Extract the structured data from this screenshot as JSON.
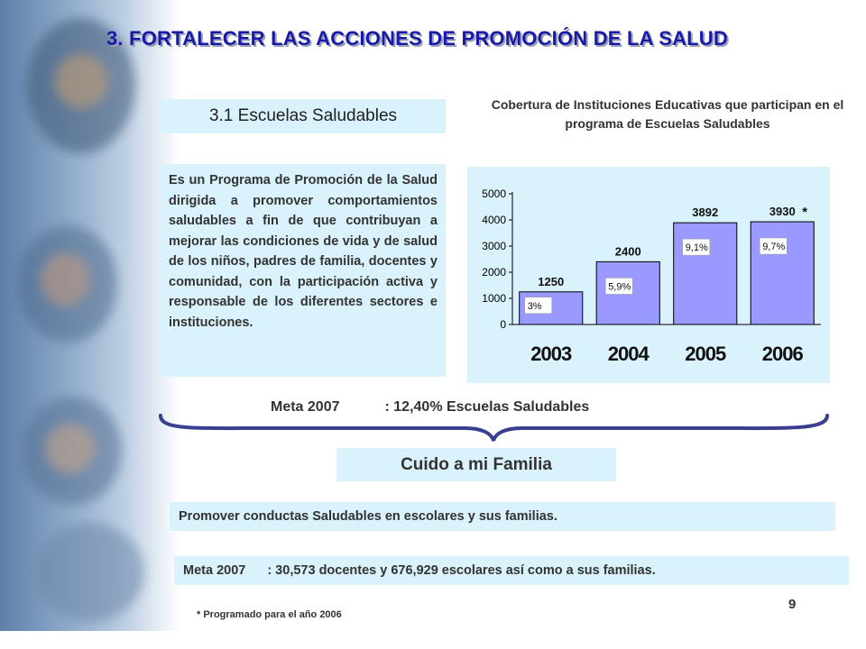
{
  "heading": "3. FORTALECER LAS ACCIONES DE PROMOCIÓN DE LA SALUD",
  "subtitle": "3.1 Escuelas Saludables",
  "description": "Es un Programa de Promoción de la Salud dirigida a promover comportamientos saludables a fin de que contribuyan a mejorar las condiciones de vida y de salud de los niños, padres de familia, docentes y comunidad, con la participación activa y responsable de los diferentes sectores e instituciones.",
  "chart_title": "Cobertura de Instituciones Educativas que participan en el programa de Escuelas Saludables",
  "chart_data": {
    "type": "bar",
    "title": "Cobertura de Instituciones Educativas que participan en el programa de Escuelas Saludables",
    "categories": [
      "2003",
      "2004",
      "2005",
      "2006"
    ],
    "values": [
      1250,
      2400,
      3892,
      3930
    ],
    "value_labels": [
      "1250",
      "2400",
      "3892",
      "3930"
    ],
    "percent_labels": [
      "3%",
      "5,9%",
      "9,1%",
      "9,7%"
    ],
    "marker_on_last": "*",
    "yticks": [
      0,
      1000,
      2000,
      3000,
      4000,
      5000
    ],
    "ylim": [
      0,
      5000
    ],
    "xlabel": "",
    "ylabel": "",
    "bar_color": "#9999ff",
    "label_box_color": "#ffffff",
    "grid": false
  },
  "meta2007": {
    "label": "Meta 2007",
    "value": ":  12,40% Escuelas Saludables"
  },
  "cuido": "Cuido a mi Familia",
  "promover": "Promover conductas Saludables en escolares y sus familias.",
  "meta2": {
    "label": "Meta 2007",
    "value": ":  30,573 docentes y  676,929 escolares así como a sus  familias."
  },
  "page_number": "9",
  "footnote": "* Programado para el año 2006",
  "colors": {
    "heading": "#1a1aa6",
    "box_bg": "#d9f2fb",
    "brace": "#3a3f8f",
    "bar": "#9999ff"
  }
}
